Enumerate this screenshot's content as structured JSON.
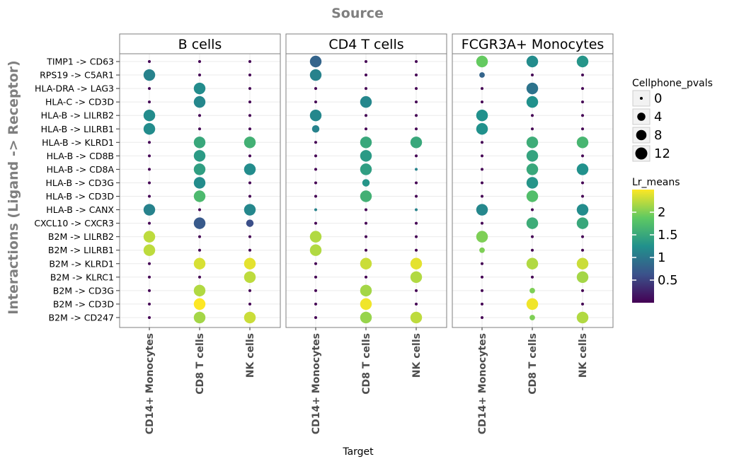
{
  "chart_data": {
    "type": "scatter",
    "title": "Source",
    "xlabel": "Target",
    "ylabel": "Interactions (Ligand -> Receptor)",
    "panels": [
      "B cells",
      "CD4 T cells",
      "FCGR3A+ Monocytes"
    ],
    "targets": [
      "CD14+ Monocytes",
      "CD8 T cells",
      "NK cells"
    ],
    "interactions": [
      "TIMP1 -> CD63",
      "RPS19 -> C5AR1",
      "HLA-DRA -> LAG3",
      "HLA-C -> CD3D",
      "HLA-B -> LILRB2",
      "HLA-B -> LILRB1",
      "HLA-B -> KLRD1",
      "HLA-B -> CD8B",
      "HLA-B -> CD8A",
      "HLA-B -> CD3G",
      "HLA-B -> CD3D",
      "HLA-B -> CANX",
      "CXCL10 -> CXCR3",
      "B2M -> LILRB2",
      "B2M -> LILRB1",
      "B2M -> KLRD1",
      "B2M -> KLRC1",
      "B2M -> CD3G",
      "B2M -> CD3D",
      "B2M -> CD247"
    ],
    "size_legend": {
      "title": "Cellphone_pvals",
      "values": [
        0,
        4,
        8,
        12
      ]
    },
    "color_legend": {
      "title": "Lr_means",
      "ticks": [
        0.5,
        1,
        1.5,
        2
      ],
      "range": [
        0,
        2.5
      ]
    },
    "points": {
      "B cells": [
        [
          [
            0,
            0
          ],
          [
            0,
            0
          ],
          [
            0,
            0
          ]
        ],
        [
          [
            11,
            1.1
          ],
          [
            0,
            0
          ],
          [
            0,
            0
          ]
        ],
        [
          [
            0,
            0
          ],
          [
            11,
            1.2
          ],
          [
            0,
            0
          ]
        ],
        [
          [
            0,
            0
          ],
          [
            11,
            1.15
          ],
          [
            0,
            0
          ]
        ],
        [
          [
            11,
            1.2
          ],
          [
            0,
            0
          ],
          [
            0,
            0
          ]
        ],
        [
          [
            11,
            1.2
          ],
          [
            0,
            0
          ],
          [
            0,
            0
          ]
        ],
        [
          [
            0,
            0
          ],
          [
            11,
            1.5
          ],
          [
            11,
            1.6
          ]
        ],
        [
          [
            0,
            0
          ],
          [
            11,
            1.35
          ],
          [
            0,
            0
          ]
        ],
        [
          [
            0,
            0
          ],
          [
            11,
            1.4
          ],
          [
            11,
            1.2
          ]
        ],
        [
          [
            0,
            0
          ],
          [
            11,
            1.2
          ],
          [
            0,
            0
          ]
        ],
        [
          [
            0,
            0
          ],
          [
            11,
            1.7
          ],
          [
            0,
            0
          ]
        ],
        [
          [
            11,
            1.1
          ],
          [
            0,
            0
          ],
          [
            11,
            1.15
          ]
        ],
        [
          [
            0,
            0
          ],
          [
            11,
            0.7
          ],
          [
            3,
            0.6
          ]
        ],
        [
          [
            11,
            2.25
          ],
          [
            0,
            0
          ],
          [
            0,
            0
          ]
        ],
        [
          [
            11,
            2.25
          ],
          [
            0,
            0
          ],
          [
            0,
            0
          ]
        ],
        [
          [
            0,
            0
          ],
          [
            11,
            2.35
          ],
          [
            11,
            2.4
          ]
        ],
        [
          [
            0,
            0
          ],
          [
            0,
            0
          ],
          [
            11,
            2.25
          ]
        ],
        [
          [
            0,
            0
          ],
          [
            11,
            2.2
          ],
          [
            0,
            0
          ]
        ],
        [
          [
            0,
            0
          ],
          [
            11,
            2.5
          ],
          [
            0,
            0
          ]
        ],
        [
          [
            0,
            0
          ],
          [
            11,
            2.15
          ],
          [
            11,
            2.3
          ]
        ]
      ],
      "CD4 T cells": [
        [
          [
            11,
            0.8
          ],
          [
            0,
            0
          ],
          [
            0,
            0
          ]
        ],
        [
          [
            11,
            1.1
          ],
          [
            0,
            0
          ],
          [
            0,
            0
          ]
        ],
        [
          [
            0,
            0
          ],
          [
            0,
            0
          ],
          [
            0,
            0
          ]
        ],
        [
          [
            0,
            0
          ],
          [
            11,
            1.15
          ],
          [
            0,
            0
          ]
        ],
        [
          [
            11,
            1.15
          ],
          [
            0,
            0
          ],
          [
            0,
            0
          ]
        ],
        [
          [
            3,
            1.1
          ],
          [
            0,
            0
          ],
          [
            0,
            0
          ]
        ],
        [
          [
            0,
            0
          ],
          [
            11,
            1.5
          ],
          [
            11,
            1.5
          ]
        ],
        [
          [
            0,
            0
          ],
          [
            11,
            1.35
          ],
          [
            0,
            0
          ]
        ],
        [
          [
            0,
            0
          ],
          [
            11,
            1.4
          ],
          [
            0,
            1.1
          ]
        ],
        [
          [
            0,
            0
          ],
          [
            3,
            1.3
          ],
          [
            0,
            0
          ]
        ],
        [
          [
            0,
            0
          ],
          [
            11,
            1.6
          ],
          [
            0,
            0
          ]
        ],
        [
          [
            0,
            1.1
          ],
          [
            0,
            0
          ],
          [
            0,
            1.1
          ]
        ],
        [
          [
            0,
            0
          ],
          [
            0,
            0
          ],
          [
            0,
            0
          ]
        ],
        [
          [
            11,
            2.2
          ],
          [
            0,
            0
          ],
          [
            0,
            0
          ]
        ],
        [
          [
            11,
            2.2
          ],
          [
            0,
            0
          ],
          [
            0,
            0
          ]
        ],
        [
          [
            0,
            0
          ],
          [
            11,
            2.3
          ],
          [
            11,
            2.4
          ]
        ],
        [
          [
            0,
            0
          ],
          [
            0,
            0
          ],
          [
            11,
            2.2
          ]
        ],
        [
          [
            0,
            0
          ],
          [
            11,
            2.15
          ],
          [
            0,
            0
          ]
        ],
        [
          [
            0,
            0
          ],
          [
            11,
            2.45
          ],
          [
            0,
            0
          ]
        ],
        [
          [
            0,
            0
          ],
          [
            11,
            2.1
          ],
          [
            11,
            2.25
          ]
        ]
      ],
      "FCGR3A+ Monocytes": [
        [
          [
            11,
            1.9
          ],
          [
            11,
            1.2
          ],
          [
            11,
            1.3
          ]
        ],
        [
          [
            1,
            0.8
          ],
          [
            0,
            0
          ],
          [
            0,
            0
          ]
        ],
        [
          [
            0,
            0
          ],
          [
            11,
            0.95
          ],
          [
            0,
            0
          ]
        ],
        [
          [
            0,
            0
          ],
          [
            11,
            1.25
          ],
          [
            0,
            0
          ]
        ],
        [
          [
            11,
            1.25
          ],
          [
            0,
            0
          ],
          [
            0,
            0
          ]
        ],
        [
          [
            11,
            1.25
          ],
          [
            0,
            0
          ],
          [
            0,
            0
          ]
        ],
        [
          [
            0,
            0
          ],
          [
            11,
            1.55
          ],
          [
            11,
            1.65
          ]
        ],
        [
          [
            0,
            0
          ],
          [
            11,
            1.45
          ],
          [
            0,
            0
          ]
        ],
        [
          [
            0,
            0
          ],
          [
            11,
            1.5
          ],
          [
            11,
            1.25
          ]
        ],
        [
          [
            0,
            0
          ],
          [
            11,
            1.3
          ],
          [
            0,
            0
          ]
        ],
        [
          [
            0,
            0
          ],
          [
            11,
            1.75
          ],
          [
            0,
            0
          ]
        ],
        [
          [
            11,
            1.15
          ],
          [
            0,
            0
          ],
          [
            11,
            1.2
          ]
        ],
        [
          [
            0,
            0
          ],
          [
            11,
            1.55
          ],
          [
            11,
            1.5
          ]
        ],
        [
          [
            11,
            2.0
          ],
          [
            0,
            0
          ],
          [
            0,
            0
          ]
        ],
        [
          [
            1,
            2.0
          ],
          [
            0,
            0
          ],
          [
            0,
            0
          ]
        ],
        [
          [
            0,
            0
          ],
          [
            11,
            2.2
          ],
          [
            11,
            2.3
          ]
        ],
        [
          [
            0,
            0
          ],
          [
            0,
            0
          ],
          [
            11,
            2.15
          ]
        ],
        [
          [
            0,
            0
          ],
          [
            1,
            2.0
          ],
          [
            0,
            0
          ]
        ],
        [
          [
            0,
            0
          ],
          [
            11,
            2.45
          ],
          [
            0,
            0
          ]
        ],
        [
          [
            0,
            0
          ],
          [
            1,
            2.0
          ],
          [
            11,
            2.2
          ]
        ]
      ]
    }
  }
}
